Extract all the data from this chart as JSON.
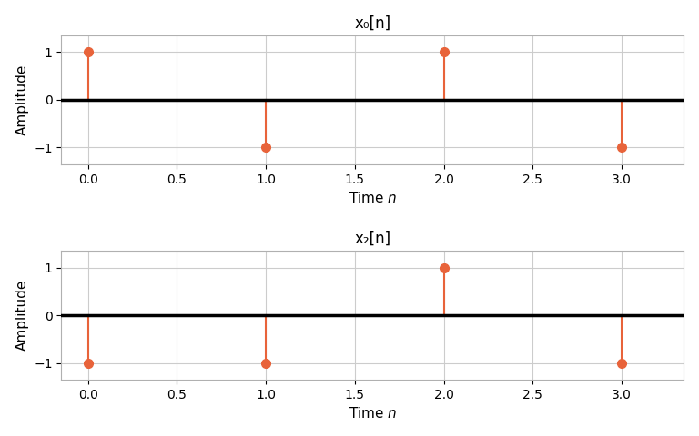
{
  "plot1": {
    "title": "x₀[n]",
    "n": [
      0,
      1,
      2,
      3
    ],
    "values": [
      1,
      -1,
      1,
      -1
    ],
    "xlabel_prefix": "Time ",
    "xlabel_italic": "n",
    "ylabel": "Amplitude"
  },
  "plot2": {
    "title": "x₂[n]",
    "n": [
      0,
      1,
      2,
      3
    ],
    "values": [
      -1,
      -1,
      1,
      -1
    ],
    "xlabel_prefix": "Time ",
    "xlabel_italic": "n",
    "ylabel": "Amplitude"
  },
  "stem_color": "#E8633A",
  "marker_color": "#E8633A",
  "marker_size": 7,
  "line_width": 1.5,
  "axhline_color": "black",
  "axhline_lw": 2.5,
  "ylim": [
    -1.35,
    1.35
  ],
  "xlim": [
    -0.15,
    3.35
  ],
  "yticks": [
    -1,
    0,
    1
  ],
  "xticks": [
    0.0,
    0.5,
    1.0,
    1.5,
    2.0,
    2.5,
    3.0
  ],
  "grid": true,
  "grid_color": "#cccccc",
  "background_color": "#ffffff",
  "fig_background": "#ffffff",
  "title_fontsize": 12,
  "label_fontsize": 11
}
